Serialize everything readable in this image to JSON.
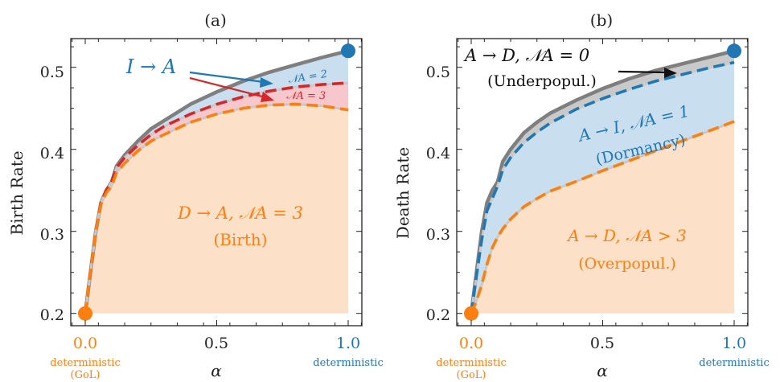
{
  "chart_data": [
    {
      "panel": "(a)",
      "type": "area",
      "ylabel": "Birth Rate",
      "xlabel": "α",
      "xlim": [
        0,
        1
      ],
      "ylim": [
        0.185,
        0.535
      ],
      "xticks": [
        "0.0",
        "0.5",
        "1.0"
      ],
      "yticks": [
        "0.2",
        "0.3",
        "0.4",
        "0.5"
      ],
      "xtick_notes": {
        "left": [
          "deterministic",
          "(GoL)"
        ],
        "right": [
          "deterministic"
        ]
      },
      "x": [
        0,
        0.02,
        0.04,
        0.06,
        0.08,
        0.1,
        0.12,
        0.15,
        0.2,
        0.25,
        0.3,
        0.4,
        0.5,
        0.6,
        0.7,
        0.8,
        0.9,
        1.0
      ],
      "series": [
        {
          "key": "upper_bound",
          "color": "#7f7f7f",
          "values": [
            0.2,
            0.25,
            0.3,
            0.335,
            0.35,
            0.36,
            0.38,
            0.393,
            0.41,
            0.425,
            0.435,
            0.455,
            0.47,
            0.483,
            0.494,
            0.503,
            0.512,
            0.52
          ]
        },
        {
          "key": "N_A=2",
          "color": "#d62728",
          "values": [
            0.2,
            0.25,
            0.3,
            0.335,
            0.35,
            0.36,
            0.378,
            0.39,
            0.405,
            0.418,
            0.428,
            0.443,
            0.455,
            0.464,
            0.471,
            0.476,
            0.479,
            0.481
          ]
        },
        {
          "key": "N_A=3",
          "color": "#ff7f0e",
          "values": [
            0.2,
            0.25,
            0.3,
            0.333,
            0.347,
            0.355,
            0.372,
            0.383,
            0.398,
            0.41,
            0.418,
            0.433,
            0.443,
            0.45,
            0.454,
            0.455,
            0.453,
            0.448
          ]
        }
      ],
      "markers": [
        {
          "x": 0.0,
          "y": 0.2,
          "color": "#ff7f0e"
        },
        {
          "x": 1.0,
          "y": 0.52,
          "color": "#1f77b4"
        }
      ],
      "annotations": {
        "top_label": "I → A",
        "region_2": "𝒩A = 2",
        "region_3": "𝒩A = 3",
        "bottom_label": "D → A, 𝒩A = 3",
        "bottom_sub": "(Birth)"
      }
    },
    {
      "panel": "(b)",
      "type": "area",
      "ylabel": "Death Rate",
      "xlabel": "α",
      "xlim": [
        0,
        1
      ],
      "ylim": [
        0.185,
        0.535
      ],
      "xticks": [
        "0.0",
        "0.5",
        "1.0"
      ],
      "yticks": [
        "0.2",
        "0.3",
        "0.4",
        "0.5"
      ],
      "xtick_notes": {
        "left": [
          "deterministic",
          "(GoL)"
        ],
        "right": [
          "deterministic"
        ]
      },
      "x": [
        0,
        0.02,
        0.04,
        0.06,
        0.08,
        0.1,
        0.12,
        0.15,
        0.2,
        0.25,
        0.3,
        0.4,
        0.5,
        0.6,
        0.7,
        0.8,
        0.9,
        1.0
      ],
      "series": [
        {
          "key": "upper_bound",
          "color": "#7f7f7f",
          "values": [
            0.2,
            0.25,
            0.3,
            0.335,
            0.35,
            0.36,
            0.385,
            0.4,
            0.42,
            0.433,
            0.444,
            0.46,
            0.474,
            0.486,
            0.496,
            0.504,
            0.512,
            0.52
          ]
        },
        {
          "key": "N_A=1",
          "color": "#1f77b4",
          "values": [
            0.2,
            0.245,
            0.29,
            0.325,
            0.34,
            0.355,
            0.375,
            0.39,
            0.408,
            0.421,
            0.432,
            0.449,
            0.462,
            0.473,
            0.483,
            0.491,
            0.499,
            0.506
          ]
        },
        {
          "key": "N_A=3",
          "color": "#ff7f0e",
          "values": [
            0.2,
            0.215,
            0.235,
            0.26,
            0.28,
            0.293,
            0.303,
            0.315,
            0.33,
            0.34,
            0.349,
            0.361,
            0.374,
            0.386,
            0.398,
            0.41,
            0.422,
            0.434
          ]
        }
      ],
      "markers": [
        {
          "x": 0.0,
          "y": 0.2,
          "color": "#ff7f0e"
        },
        {
          "x": 1.0,
          "y": 0.52,
          "color": "#1f77b4"
        }
      ],
      "annotations": {
        "top_label": "A → D, 𝒩A = 0",
        "top_sub": "(Underpopul.)",
        "mid_label": "A → I, 𝒩A = 1",
        "mid_sub": "(Dormancy)",
        "bottom_label": "A → D, 𝒩A > 3",
        "bottom_sub": "(Overpopul.)"
      }
    }
  ],
  "colors": {
    "orange": "#ff7f0e",
    "blue": "#1f77b4",
    "red": "#d62728",
    "gray": "#7f7f7f",
    "fill_orange": "#fde0c8",
    "fill_blue": "#c9dff0",
    "fill_red": "#f6c7cc",
    "fill_gray": "#c9c9c9"
  }
}
